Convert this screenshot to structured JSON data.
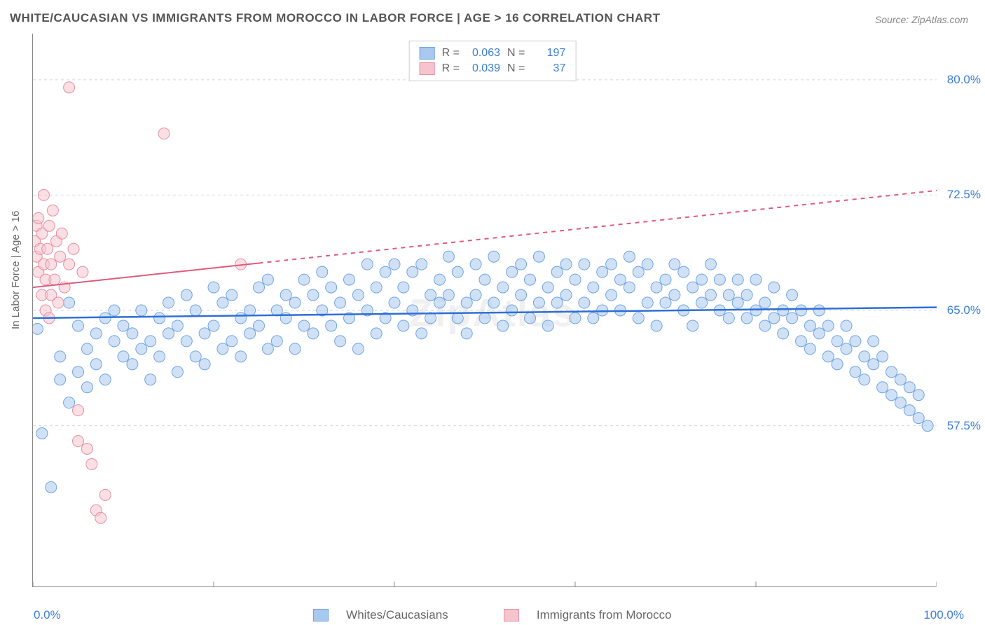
{
  "title": "WHITE/CAUCASIAN VS IMMIGRANTS FROM MOROCCO IN LABOR FORCE | AGE > 16 CORRELATION CHART",
  "source": "Source: ZipAtlas.com",
  "ylabel": "In Labor Force | Age > 16",
  "watermark": "ZipAtlas",
  "legend_top": [
    {
      "r_label": "R =",
      "r_val": "0.063",
      "n_label": "N =",
      "n_val": "197",
      "fill": "#a9c8ef",
      "stroke": "#6fa4e3"
    },
    {
      "r_label": "R =",
      "r_val": "0.039",
      "n_label": "N =",
      "n_val": "37",
      "fill": "#f6c4ce",
      "stroke": "#e78fa3"
    }
  ],
  "legend_bottom": [
    {
      "label": "Whites/Caucasians",
      "fill": "#a9c8ef",
      "stroke": "#6fa4e3"
    },
    {
      "label": "Immigrants from Morocco",
      "fill": "#f6c4ce",
      "stroke": "#e78fa3"
    }
  ],
  "chart": {
    "type": "scatter",
    "xlim": [
      0,
      100
    ],
    "ylim": [
      47,
      83
    ],
    "xticks": [
      0,
      20,
      40,
      60,
      80,
      100
    ],
    "yticks": [
      57.5,
      65.0,
      72.5,
      80.0
    ],
    "ytick_labels": [
      "57.5%",
      "65.0%",
      "72.5%",
      "80.0%"
    ],
    "x_left_label": "0.0%",
    "x_right_label": "100.0%",
    "grid_color": "#d6d6d6",
    "marker_radius": 8,
    "marker_opacity": 0.55,
    "series": [
      {
        "name": "whites",
        "fill": "#a9c8ef",
        "stroke": "#6fa4e3",
        "trend": {
          "x0": 0,
          "y0": 64.5,
          "x1": 100,
          "y1": 65.2,
          "stroke": "#2e6fd6",
          "width": 2.5,
          "solid": true
        },
        "points": [
          [
            0.5,
            63.8
          ],
          [
            1,
            57.0
          ],
          [
            2,
            53.5
          ],
          [
            3,
            60.5
          ],
          [
            3,
            62.0
          ],
          [
            4,
            59.0
          ],
          [
            4,
            65.5
          ],
          [
            5,
            61.0
          ],
          [
            5,
            64.0
          ],
          [
            6,
            62.5
          ],
          [
            6,
            60.0
          ],
          [
            7,
            63.5
          ],
          [
            7,
            61.5
          ],
          [
            8,
            60.5
          ],
          [
            8,
            64.5
          ],
          [
            9,
            63.0
          ],
          [
            9,
            65.0
          ],
          [
            10,
            62.0
          ],
          [
            10,
            64.0
          ],
          [
            11,
            61.5
          ],
          [
            11,
            63.5
          ],
          [
            12,
            65.0
          ],
          [
            12,
            62.5
          ],
          [
            13,
            60.5
          ],
          [
            13,
            63.0
          ],
          [
            14,
            64.5
          ],
          [
            14,
            62.0
          ],
          [
            15,
            65.5
          ],
          [
            15,
            63.5
          ],
          [
            16,
            61.0
          ],
          [
            16,
            64.0
          ],
          [
            17,
            66.0
          ],
          [
            17,
            63.0
          ],
          [
            18,
            62.0
          ],
          [
            18,
            65.0
          ],
          [
            19,
            61.5
          ],
          [
            19,
            63.5
          ],
          [
            20,
            66.5
          ],
          [
            20,
            64.0
          ],
          [
            21,
            62.5
          ],
          [
            21,
            65.5
          ],
          [
            22,
            63.0
          ],
          [
            22,
            66.0
          ],
          [
            23,
            64.5
          ],
          [
            23,
            62.0
          ],
          [
            24,
            65.0
          ],
          [
            24,
            63.5
          ],
          [
            25,
            66.5
          ],
          [
            25,
            64.0
          ],
          [
            26,
            62.5
          ],
          [
            26,
            67.0
          ],
          [
            27,
            65.0
          ],
          [
            27,
            63.0
          ],
          [
            28,
            66.0
          ],
          [
            28,
            64.5
          ],
          [
            29,
            62.5
          ],
          [
            29,
            65.5
          ],
          [
            30,
            67.0
          ],
          [
            30,
            64.0
          ],
          [
            31,
            66.0
          ],
          [
            31,
            63.5
          ],
          [
            32,
            65.0
          ],
          [
            32,
            67.5
          ],
          [
            33,
            64.0
          ],
          [
            33,
            66.5
          ],
          [
            34,
            63.0
          ],
          [
            34,
            65.5
          ],
          [
            35,
            67.0
          ],
          [
            35,
            64.5
          ],
          [
            36,
            62.5
          ],
          [
            36,
            66.0
          ],
          [
            37,
            68.0
          ],
          [
            37,
            65.0
          ],
          [
            38,
            63.5
          ],
          [
            38,
            66.5
          ],
          [
            39,
            64.5
          ],
          [
            39,
            67.5
          ],
          [
            40,
            65.5
          ],
          [
            40,
            68.0
          ],
          [
            41,
            64.0
          ],
          [
            41,
            66.5
          ],
          [
            42,
            67.5
          ],
          [
            42,
            65.0
          ],
          [
            43,
            63.5
          ],
          [
            43,
            68.0
          ],
          [
            44,
            66.0
          ],
          [
            44,
            64.5
          ],
          [
            45,
            67.0
          ],
          [
            45,
            65.5
          ],
          [
            46,
            68.5
          ],
          [
            46,
            66.0
          ],
          [
            47,
            64.5
          ],
          [
            47,
            67.5
          ],
          [
            48,
            65.5
          ],
          [
            48,
            63.5
          ],
          [
            49,
            68.0
          ],
          [
            49,
            66.0
          ],
          [
            50,
            67.0
          ],
          [
            50,
            64.5
          ],
          [
            51,
            68.5
          ],
          [
            51,
            65.5
          ],
          [
            52,
            66.5
          ],
          [
            52,
            64.0
          ],
          [
            53,
            67.5
          ],
          [
            53,
            65.0
          ],
          [
            54,
            68.0
          ],
          [
            54,
            66.0
          ],
          [
            55,
            64.5
          ],
          [
            55,
            67.0
          ],
          [
            56,
            65.5
          ],
          [
            56,
            68.5
          ],
          [
            57,
            66.5
          ],
          [
            57,
            64.0
          ],
          [
            58,
            67.5
          ],
          [
            58,
            65.5
          ],
          [
            59,
            68.0
          ],
          [
            59,
            66.0
          ],
          [
            60,
            64.5
          ],
          [
            60,
            67.0
          ],
          [
            61,
            65.5
          ],
          [
            61,
            68.0
          ],
          [
            62,
            66.5
          ],
          [
            62,
            64.5
          ],
          [
            63,
            67.5
          ],
          [
            63,
            65.0
          ],
          [
            64,
            68.0
          ],
          [
            64,
            66.0
          ],
          [
            65,
            67.0
          ],
          [
            65,
            65.0
          ],
          [
            66,
            68.5
          ],
          [
            66,
            66.5
          ],
          [
            67,
            64.5
          ],
          [
            67,
            67.5
          ],
          [
            68,
            65.5
          ],
          [
            68,
            68.0
          ],
          [
            69,
            66.5
          ],
          [
            69,
            64.0
          ],
          [
            70,
            67.0
          ],
          [
            70,
            65.5
          ],
          [
            71,
            68.0
          ],
          [
            71,
            66.0
          ],
          [
            72,
            67.5
          ],
          [
            72,
            65.0
          ],
          [
            73,
            66.5
          ],
          [
            73,
            64.0
          ],
          [
            74,
            67.0
          ],
          [
            74,
            65.5
          ],
          [
            75,
            66.0
          ],
          [
            75,
            68.0
          ],
          [
            76,
            65.0
          ],
          [
            76,
            67.0
          ],
          [
            77,
            66.0
          ],
          [
            77,
            64.5
          ],
          [
            78,
            65.5
          ],
          [
            78,
            67.0
          ],
          [
            79,
            64.5
          ],
          [
            79,
            66.0
          ],
          [
            80,
            65.0
          ],
          [
            80,
            67.0
          ],
          [
            81,
            64.0
          ],
          [
            81,
            65.5
          ],
          [
            82,
            66.5
          ],
          [
            82,
            64.5
          ],
          [
            83,
            65.0
          ],
          [
            83,
            63.5
          ],
          [
            84,
            64.5
          ],
          [
            84,
            66.0
          ],
          [
            85,
            63.0
          ],
          [
            85,
            65.0
          ],
          [
            86,
            64.0
          ],
          [
            86,
            62.5
          ],
          [
            87,
            63.5
          ],
          [
            87,
            65.0
          ],
          [
            88,
            62.0
          ],
          [
            88,
            64.0
          ],
          [
            89,
            63.0
          ],
          [
            89,
            61.5
          ],
          [
            90,
            62.5
          ],
          [
            90,
            64.0
          ],
          [
            91,
            61.0
          ],
          [
            91,
            63.0
          ],
          [
            92,
            62.0
          ],
          [
            92,
            60.5
          ],
          [
            93,
            61.5
          ],
          [
            93,
            63.0
          ],
          [
            94,
            60.0
          ],
          [
            94,
            62.0
          ],
          [
            95,
            61.0
          ],
          [
            95,
            59.5
          ],
          [
            96,
            60.5
          ],
          [
            96,
            59.0
          ],
          [
            97,
            60.0
          ],
          [
            97,
            58.5
          ],
          [
            98,
            59.5
          ],
          [
            98,
            58.0
          ],
          [
            99,
            57.5
          ]
        ]
      },
      {
        "name": "morocco",
        "fill": "#f6c4ce",
        "stroke": "#e78fa3",
        "trend": {
          "x0": 0,
          "y0": 66.5,
          "x1": 100,
          "y1": 72.8,
          "stroke": "#e05a7a",
          "width": 2,
          "solid_until": 25
        },
        "points": [
          [
            0.2,
            69.5
          ],
          [
            0.4,
            70.5
          ],
          [
            0.4,
            68.5
          ],
          [
            0.6,
            71.0
          ],
          [
            0.6,
            67.5
          ],
          [
            0.8,
            69.0
          ],
          [
            1.0,
            70.0
          ],
          [
            1.0,
            66.0
          ],
          [
            1.2,
            68.0
          ],
          [
            1.2,
            72.5
          ],
          [
            1.4,
            65.0
          ],
          [
            1.4,
            67.0
          ],
          [
            1.6,
            69.0
          ],
          [
            1.8,
            70.5
          ],
          [
            1.8,
            64.5
          ],
          [
            2.0,
            68.0
          ],
          [
            2.0,
            66.0
          ],
          [
            2.2,
            71.5
          ],
          [
            2.4,
            67.0
          ],
          [
            2.6,
            69.5
          ],
          [
            2.8,
            65.5
          ],
          [
            3.0,
            68.5
          ],
          [
            3.2,
            70.0
          ],
          [
            3.5,
            66.5
          ],
          [
            4.0,
            68.0
          ],
          [
            4.5,
            69.0
          ],
          [
            5.0,
            58.5
          ],
          [
            5.0,
            56.5
          ],
          [
            5.5,
            67.5
          ],
          [
            6.0,
            56.0
          ],
          [
            6.5,
            55.0
          ],
          [
            7.0,
            52.0
          ],
          [
            7.5,
            51.5
          ],
          [
            8.0,
            53.0
          ],
          [
            4.0,
            79.5
          ],
          [
            14.5,
            76.5
          ],
          [
            23.0,
            68.0
          ]
        ]
      }
    ]
  }
}
